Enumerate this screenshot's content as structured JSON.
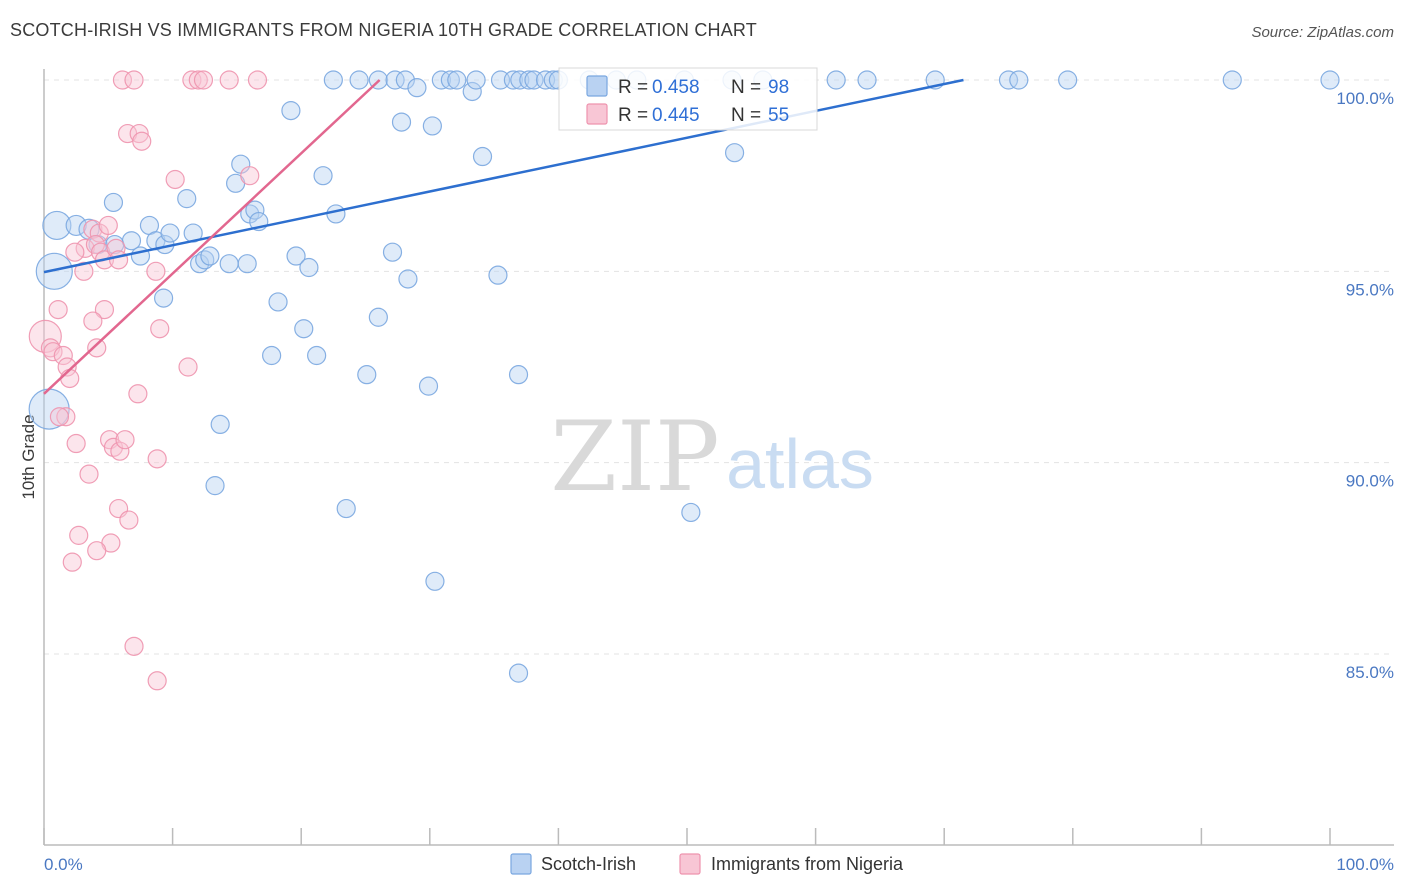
{
  "title": "SCOTCH-IRISH VS IMMIGRANTS FROM NIGERIA 10TH GRADE CORRELATION CHART",
  "source": "Source: ZipAtlas.com",
  "watermark": {
    "zip": "ZIP",
    "atlas": "atlas"
  },
  "legend": {
    "r_label": "R =",
    "n_label": "N =",
    "series": [
      {
        "name": "Scotch-Irish",
        "r": "0.458",
        "n": "98",
        "color": "#7aa7e0",
        "fill": "#b9d2f2",
        "line": "#2d6fcf"
      },
      {
        "name": "Immigrants from Nigeria",
        "r": "0.445",
        "n": "55",
        "color": "#ee93ae",
        "fill": "#f8c6d5",
        "line": "#e2678f"
      }
    ]
  },
  "chart_data": {
    "type": "scatter",
    "title": "SCOTCH-IRISH VS IMMIGRANTS FROM NIGERIA 10TH GRADE CORRELATION CHART",
    "xlabel": "",
    "ylabel": "10th Grade",
    "xlim": [
      0,
      100
    ],
    "ylim": [
      80.5,
      100.5
    ],
    "x_tick_labels": [
      "0.0%",
      "100.0%"
    ],
    "y_ticks": [
      85,
      90,
      95,
      100
    ],
    "y_tick_labels": [
      "85.0%",
      "90.0%",
      "95.0%",
      "100.0%"
    ],
    "series": [
      {
        "name": "Scotch-Irish",
        "r": 0.458,
        "n": 98,
        "trend": {
          "x": [
            0,
            71.5
          ],
          "y": [
            94.98,
            100.0
          ]
        },
        "points": [
          [
            1.0,
            96.2,
            14
          ],
          [
            0.8,
            95.0,
            18
          ],
          [
            0.4,
            91.4,
            20
          ],
          [
            2.5,
            96.2,
            10
          ],
          [
            3.5,
            96.1,
            10
          ],
          [
            4.2,
            95.7,
            9
          ],
          [
            5.5,
            95.7,
            9
          ],
          [
            6.8,
            95.8,
            9
          ],
          [
            5.4,
            96.8,
            9
          ],
          [
            7.5,
            95.4,
            9
          ],
          [
            8.2,
            96.2,
            9
          ],
          [
            8.7,
            95.8,
            9
          ],
          [
            9.4,
            95.7,
            9
          ],
          [
            9.8,
            96.0,
            9
          ],
          [
            11.1,
            96.9,
            9
          ],
          [
            11.6,
            96.0,
            9
          ],
          [
            12.1,
            95.2,
            9
          ],
          [
            12.5,
            95.3,
            9
          ],
          [
            12.9,
            95.4,
            9
          ],
          [
            14.4,
            95.2,
            9
          ],
          [
            15.8,
            95.2,
            9
          ],
          [
            14.9,
            97.3,
            9
          ],
          [
            15.3,
            97.8,
            9
          ],
          [
            16.0,
            96.5,
            9
          ],
          [
            16.4,
            96.6,
            9
          ],
          [
            16.7,
            96.3,
            9
          ],
          [
            9.3,
            94.3,
            9
          ],
          [
            13.7,
            91.0,
            9
          ],
          [
            13.3,
            89.4,
            9
          ],
          [
            19.2,
            99.2,
            9
          ],
          [
            18.2,
            94.2,
            9
          ],
          [
            17.7,
            92.8,
            9
          ],
          [
            19.6,
            95.4,
            9
          ],
          [
            20.6,
            95.1,
            9
          ],
          [
            20.2,
            93.5,
            9
          ],
          [
            21.2,
            92.8,
            9
          ],
          [
            21.7,
            97.5,
            9
          ],
          [
            22.7,
            96.5,
            9
          ],
          [
            23.5,
            88.8,
            9
          ],
          [
            25.1,
            92.3,
            9
          ],
          [
            26.0,
            93.8,
            9
          ],
          [
            27.1,
            95.5,
            9
          ],
          [
            27.8,
            98.9,
            9
          ],
          [
            28.3,
            94.8,
            9
          ],
          [
            30.2,
            98.8,
            9
          ],
          [
            29.9,
            92.0,
            9
          ],
          [
            30.4,
            86.9,
            9
          ],
          [
            33.3,
            99.7,
            9
          ],
          [
            34.1,
            98.0,
            9
          ],
          [
            35.3,
            94.9,
            9
          ],
          [
            36.9,
            92.3,
            9
          ],
          [
            36.9,
            84.5,
            9
          ],
          [
            50.3,
            88.7,
            9
          ],
          [
            53.7,
            98.1,
            9
          ],
          [
            22.5,
            100.0,
            9
          ],
          [
            24.5,
            100.0,
            9
          ],
          [
            26.0,
            100.0,
            9
          ],
          [
            27.3,
            100.0,
            9
          ],
          [
            28.1,
            100.0,
            9
          ],
          [
            29.0,
            99.8,
            9
          ],
          [
            30.9,
            100.0,
            9
          ],
          [
            31.6,
            100.0,
            9
          ],
          [
            32.1,
            100.0,
            9
          ],
          [
            33.6,
            100.0,
            9
          ],
          [
            35.5,
            100.0,
            9
          ],
          [
            36.5,
            100.0,
            9
          ],
          [
            37.0,
            100.0,
            9
          ],
          [
            37.7,
            100.0,
            9
          ],
          [
            38.1,
            100.0,
            9
          ],
          [
            39.0,
            100.0,
            9
          ],
          [
            39.6,
            100.0,
            9
          ],
          [
            40.0,
            100.0,
            9
          ],
          [
            42.4,
            100.0,
            9
          ],
          [
            44.5,
            100.0,
            9
          ],
          [
            46.1,
            100.0,
            9
          ],
          [
            49.8,
            100.0,
            9
          ],
          [
            53.5,
            100.0,
            9
          ],
          [
            55.9,
            100.0,
            9
          ],
          [
            61.6,
            100.0,
            9
          ],
          [
            64.0,
            100.0,
            9
          ],
          [
            69.3,
            100.0,
            9
          ],
          [
            75.0,
            100.0,
            9
          ],
          [
            75.8,
            100.0,
            9
          ],
          [
            79.6,
            100.0,
            9
          ],
          [
            92.4,
            100.0,
            9
          ],
          [
            100.0,
            100.0,
            9
          ]
        ]
      },
      {
        "name": "Immigrants from Nigeria",
        "r": 0.445,
        "n": 55,
        "trend": {
          "x": [
            0,
            26.1
          ],
          "y": [
            91.8,
            100.0
          ]
        },
        "points": [
          [
            0.1,
            93.3,
            16
          ],
          [
            0.5,
            93.0,
            9
          ],
          [
            0.7,
            92.9,
            9
          ],
          [
            1.1,
            94.0,
            9
          ],
          [
            1.5,
            92.8,
            9
          ],
          [
            1.8,
            92.5,
            9
          ],
          [
            2.0,
            92.2,
            9
          ],
          [
            1.7,
            91.2,
            9
          ],
          [
            2.5,
            90.5,
            9
          ],
          [
            3.5,
            89.7,
            9
          ],
          [
            2.7,
            88.1,
            9
          ],
          [
            2.2,
            87.4,
            9
          ],
          [
            3.2,
            95.6,
            9
          ],
          [
            2.4,
            95.5,
            9
          ],
          [
            3.1,
            95.0,
            9
          ],
          [
            3.8,
            96.1,
            9
          ],
          [
            4.3,
            96.0,
            9
          ],
          [
            4.0,
            95.7,
            9
          ],
          [
            4.4,
            95.5,
            9
          ],
          [
            4.7,
            95.3,
            9
          ],
          [
            5.0,
            96.2,
            9
          ],
          [
            5.6,
            95.6,
            9
          ],
          [
            5.8,
            95.3,
            9
          ],
          [
            4.7,
            94.0,
            9
          ],
          [
            3.8,
            93.7,
            9
          ],
          [
            4.1,
            93.0,
            9
          ],
          [
            5.1,
            90.6,
            9
          ],
          [
            5.4,
            90.4,
            9
          ],
          [
            5.9,
            90.3,
            9
          ],
          [
            6.3,
            90.6,
            9
          ],
          [
            5.8,
            88.8,
            9
          ],
          [
            6.6,
            88.5,
            9
          ],
          [
            5.2,
            87.9,
            9
          ],
          [
            4.1,
            87.7,
            9
          ],
          [
            7.0,
            85.2,
            9
          ],
          [
            8.8,
            84.3,
            9
          ],
          [
            8.8,
            90.1,
            9
          ],
          [
            7.3,
            91.8,
            9
          ],
          [
            8.7,
            95.0,
            9
          ],
          [
            9.0,
            93.5,
            9
          ],
          [
            11.2,
            92.5,
            9
          ],
          [
            10.2,
            97.4,
            9
          ],
          [
            6.5,
            98.6,
            9
          ],
          [
            7.4,
            98.6,
            9
          ],
          [
            7.6,
            98.4,
            9
          ],
          [
            16.0,
            97.5,
            9
          ],
          [
            6.1,
            100.0,
            9
          ],
          [
            7.0,
            100.0,
            9
          ],
          [
            11.5,
            100.0,
            9
          ],
          [
            12.0,
            100.0,
            9
          ],
          [
            12.4,
            100.0,
            9
          ],
          [
            14.4,
            100.0,
            9
          ],
          [
            16.6,
            100.0,
            9
          ],
          [
            1.2,
            91.2,
            9
          ]
        ]
      }
    ]
  }
}
